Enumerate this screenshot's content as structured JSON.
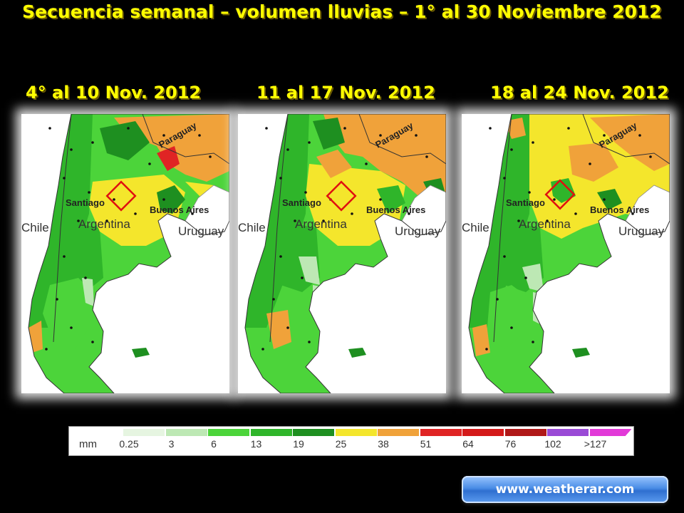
{
  "title": "Secuencia semanal – volumen lluvias – 1° al 30 Noviembre 2012",
  "panels": [
    {
      "subtitle": "4° al 10 Nov. 2012",
      "labels": {
        "paraguay": "Paraguay",
        "santiago": "Santiago",
        "buenos_aires": "Buenos Aires",
        "argentina": "Argentina",
        "chile": "Chile",
        "uruguay": "Uruguay"
      }
    },
    {
      "subtitle": "11 al 17 Nov. 2012",
      "labels": {
        "paraguay": "Paraguay",
        "santiago": "Santiago",
        "buenos_aires": "Buenos Aires",
        "argentina": "Argentina",
        "chile": "Chile",
        "uruguay": "Uruguay"
      }
    },
    {
      "subtitle": "18 al 24 Nov. 2012",
      "labels": {
        "paraguay": "Paraguay",
        "santiago": "Santiago",
        "buenos_aires": "Buenos Aires",
        "argentina": "Argentina",
        "chile": "Chile",
        "uruguay": "Uruguay"
      }
    }
  ],
  "legend": {
    "unit": "mm",
    "ticks": [
      "0.25",
      "3",
      "6",
      "13",
      "19",
      "25",
      "38",
      "51",
      "64",
      "76",
      "102",
      ">127"
    ],
    "colors": [
      "#e6f5e1",
      "#bde8b4",
      "#4cd43a",
      "#2fb52a",
      "#1e8f20",
      "#f4e62c",
      "#f0a23a",
      "#e02424",
      "#d41a1a",
      "#b01818",
      "#9a4ad6",
      "#e23ad8"
    ]
  },
  "website": "www.weatherar.com"
}
